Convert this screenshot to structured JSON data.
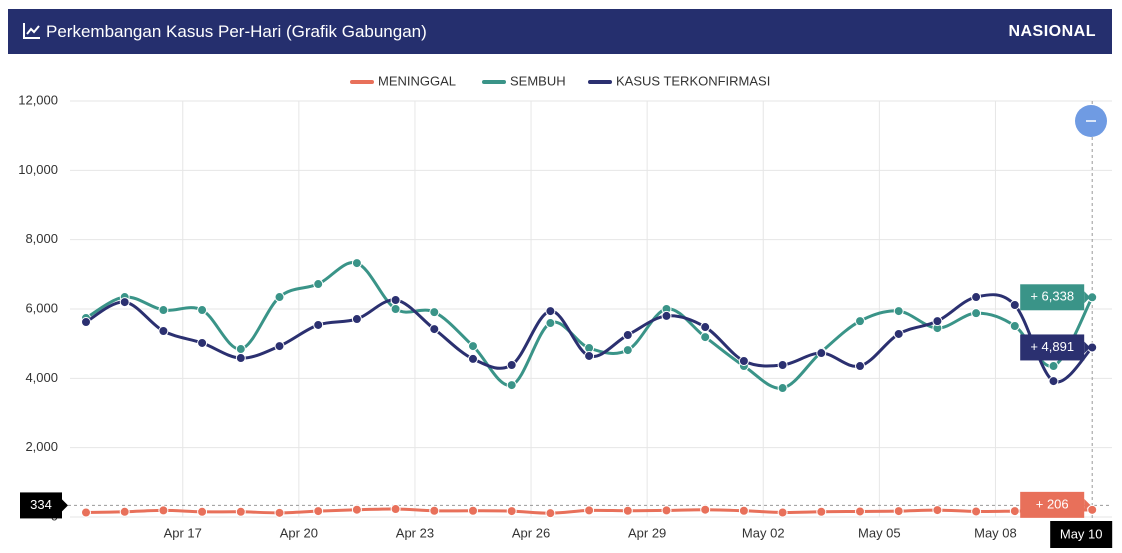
{
  "header": {
    "title": "Perkembangan Kasus Per-Hari (Grafik Gabungan)",
    "region": "NASIONAL"
  },
  "chart_data": {
    "type": "line",
    "categories": [
      null,
      null,
      null,
      "Apr 17",
      null,
      null,
      "Apr 20",
      null,
      null,
      "Apr 23",
      null,
      null,
      "Apr 26",
      null,
      null,
      "Apr 29",
      null,
      null,
      "May 02",
      null,
      null,
      "May 05",
      null,
      null,
      "May 08",
      null,
      null
    ],
    "series": [
      {
        "name": "MENINGGAL",
        "color": "#e8705a",
        "values": [
          130,
          150,
          190,
          150,
          150,
          120,
          170,
          210,
          230,
          180,
          180,
          170,
          110,
          190,
          180,
          190,
          210,
          180,
          130,
          150,
          160,
          170,
          200,
          160,
          170,
          190,
          206
        ],
        "value_labels": [
          null,
          null,
          null,
          null,
          null,
          null,
          null,
          null,
          null,
          null,
          null,
          null,
          null,
          null,
          null,
          null,
          null,
          null,
          null,
          null,
          null,
          null,
          null,
          null,
          null,
          null,
          "+ 206"
        ]
      },
      {
        "name": "SEMBUH",
        "color": "#3a9488",
        "values": [
          5740,
          6345,
          5970,
          5970,
          4845,
          6345,
          6720,
          7325,
          6000,
          5910,
          4930,
          3805,
          5595,
          4875,
          4815,
          6000,
          5190,
          4355,
          3720,
          4760,
          5650,
          5940,
          5450,
          5880,
          5510,
          4355,
          6338
        ],
        "value_labels": [
          null,
          null,
          null,
          null,
          null,
          null,
          null,
          null,
          null,
          null,
          null,
          null,
          null,
          null,
          null,
          null,
          null,
          null,
          null,
          null,
          null,
          null,
          null,
          null,
          null,
          null,
          "+ 6,338"
        ]
      },
      {
        "name": "KASUS TERKONFIRMASI",
        "color": "#2b3070",
        "values": [
          5625,
          6200,
          5365,
          5020,
          4585,
          4930,
          5540,
          5710,
          6260,
          5420,
          4560,
          4385,
          5940,
          4645,
          5250,
          5800,
          5480,
          4500,
          4385,
          4730,
          4355,
          5280,
          5650,
          6345,
          6115,
          3920,
          4891
        ],
        "value_labels": [
          null,
          null,
          null,
          null,
          null,
          null,
          null,
          null,
          null,
          null,
          null,
          null,
          null,
          null,
          null,
          null,
          null,
          null,
          null,
          null,
          null,
          null,
          null,
          null,
          null,
          null,
          "+ 4,891"
        ]
      }
    ],
    "ylim": [
      0,
      12000
    ],
    "yticks": [
      0,
      {
        "value": 2000,
        "label": "2,000"
      },
      {
        "value": 4000,
        "label": "4,000"
      },
      {
        "value": 6000,
        "label": "6,000"
      },
      {
        "value": 8000,
        "label": "8,000"
      },
      {
        "value": 10000,
        "label": "10,000"
      },
      {
        "value": 12000,
        "label": "12,000"
      }
    ],
    "grid": true,
    "crosshair_y": 334,
    "crosshair_x_label": "May 10"
  }
}
